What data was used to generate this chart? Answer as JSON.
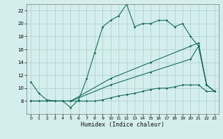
{
  "title": "",
  "xlabel": "Humidex (Indice chaleur)",
  "xlim": [
    -0.5,
    23.5
  ],
  "ylim": [
    6,
    23
  ],
  "yticks": [
    8,
    10,
    12,
    14,
    16,
    18,
    20,
    22
  ],
  "xticks": [
    0,
    1,
    2,
    3,
    4,
    5,
    6,
    7,
    8,
    9,
    10,
    11,
    12,
    13,
    14,
    15,
    16,
    17,
    18,
    19,
    20,
    21,
    22,
    23
  ],
  "background_color": "#d4eeee",
  "grid_color": "#aacccc",
  "line_color": "#1a6b5a",
  "series": {
    "main": [
      [
        0,
        11
      ],
      [
        1,
        9.2
      ],
      [
        2,
        8.2
      ],
      [
        3,
        8.0
      ],
      [
        4,
        8.0
      ],
      [
        5,
        7.0
      ],
      [
        6,
        8.2
      ],
      [
        7,
        11.5
      ],
      [
        8,
        15.5
      ],
      [
        9,
        19.5
      ],
      [
        10,
        20.5
      ],
      [
        11,
        21.2
      ],
      [
        12,
        23.0
      ],
      [
        13,
        19.5
      ],
      [
        14,
        20.0
      ],
      [
        15,
        20.0
      ],
      [
        16,
        20.5
      ],
      [
        17,
        20.5
      ],
      [
        18,
        19.5
      ],
      [
        19,
        20.0
      ],
      [
        20,
        18.0
      ],
      [
        21,
        16.5
      ],
      [
        22,
        10.5
      ],
      [
        23,
        9.5
      ]
    ],
    "lower1": [
      [
        0,
        8.0
      ],
      [
        1,
        8.0
      ],
      [
        2,
        8.0
      ],
      [
        3,
        8.0
      ],
      [
        4,
        8.0
      ],
      [
        5,
        8.0
      ],
      [
        6,
        8.0
      ],
      [
        7,
        8.0
      ],
      [
        8,
        8.0
      ],
      [
        9,
        8.2
      ],
      [
        10,
        8.5
      ],
      [
        11,
        8.8
      ],
      [
        12,
        9.0
      ],
      [
        13,
        9.2
      ],
      [
        14,
        9.5
      ],
      [
        15,
        9.8
      ],
      [
        16,
        10.0
      ],
      [
        17,
        10.0
      ],
      [
        18,
        10.2
      ],
      [
        19,
        10.5
      ],
      [
        20,
        10.5
      ],
      [
        21,
        10.5
      ],
      [
        22,
        9.5
      ],
      [
        23,
        9.5
      ]
    ],
    "upper_trend": [
      [
        0,
        8.0
      ],
      [
        5,
        8.0
      ],
      [
        10,
        10.5
      ],
      [
        15,
        12.5
      ],
      [
        20,
        14.5
      ],
      [
        21,
        16.5
      ],
      [
        22,
        10.5
      ],
      [
        23,
        9.5
      ]
    ],
    "mid_trend": [
      [
        0,
        8.0
      ],
      [
        5,
        8.0
      ],
      [
        10,
        11.5
      ],
      [
        15,
        14.0
      ],
      [
        20,
        16.5
      ],
      [
        21,
        17.0
      ],
      [
        22,
        10.5
      ],
      [
        23,
        9.5
      ]
    ]
  }
}
